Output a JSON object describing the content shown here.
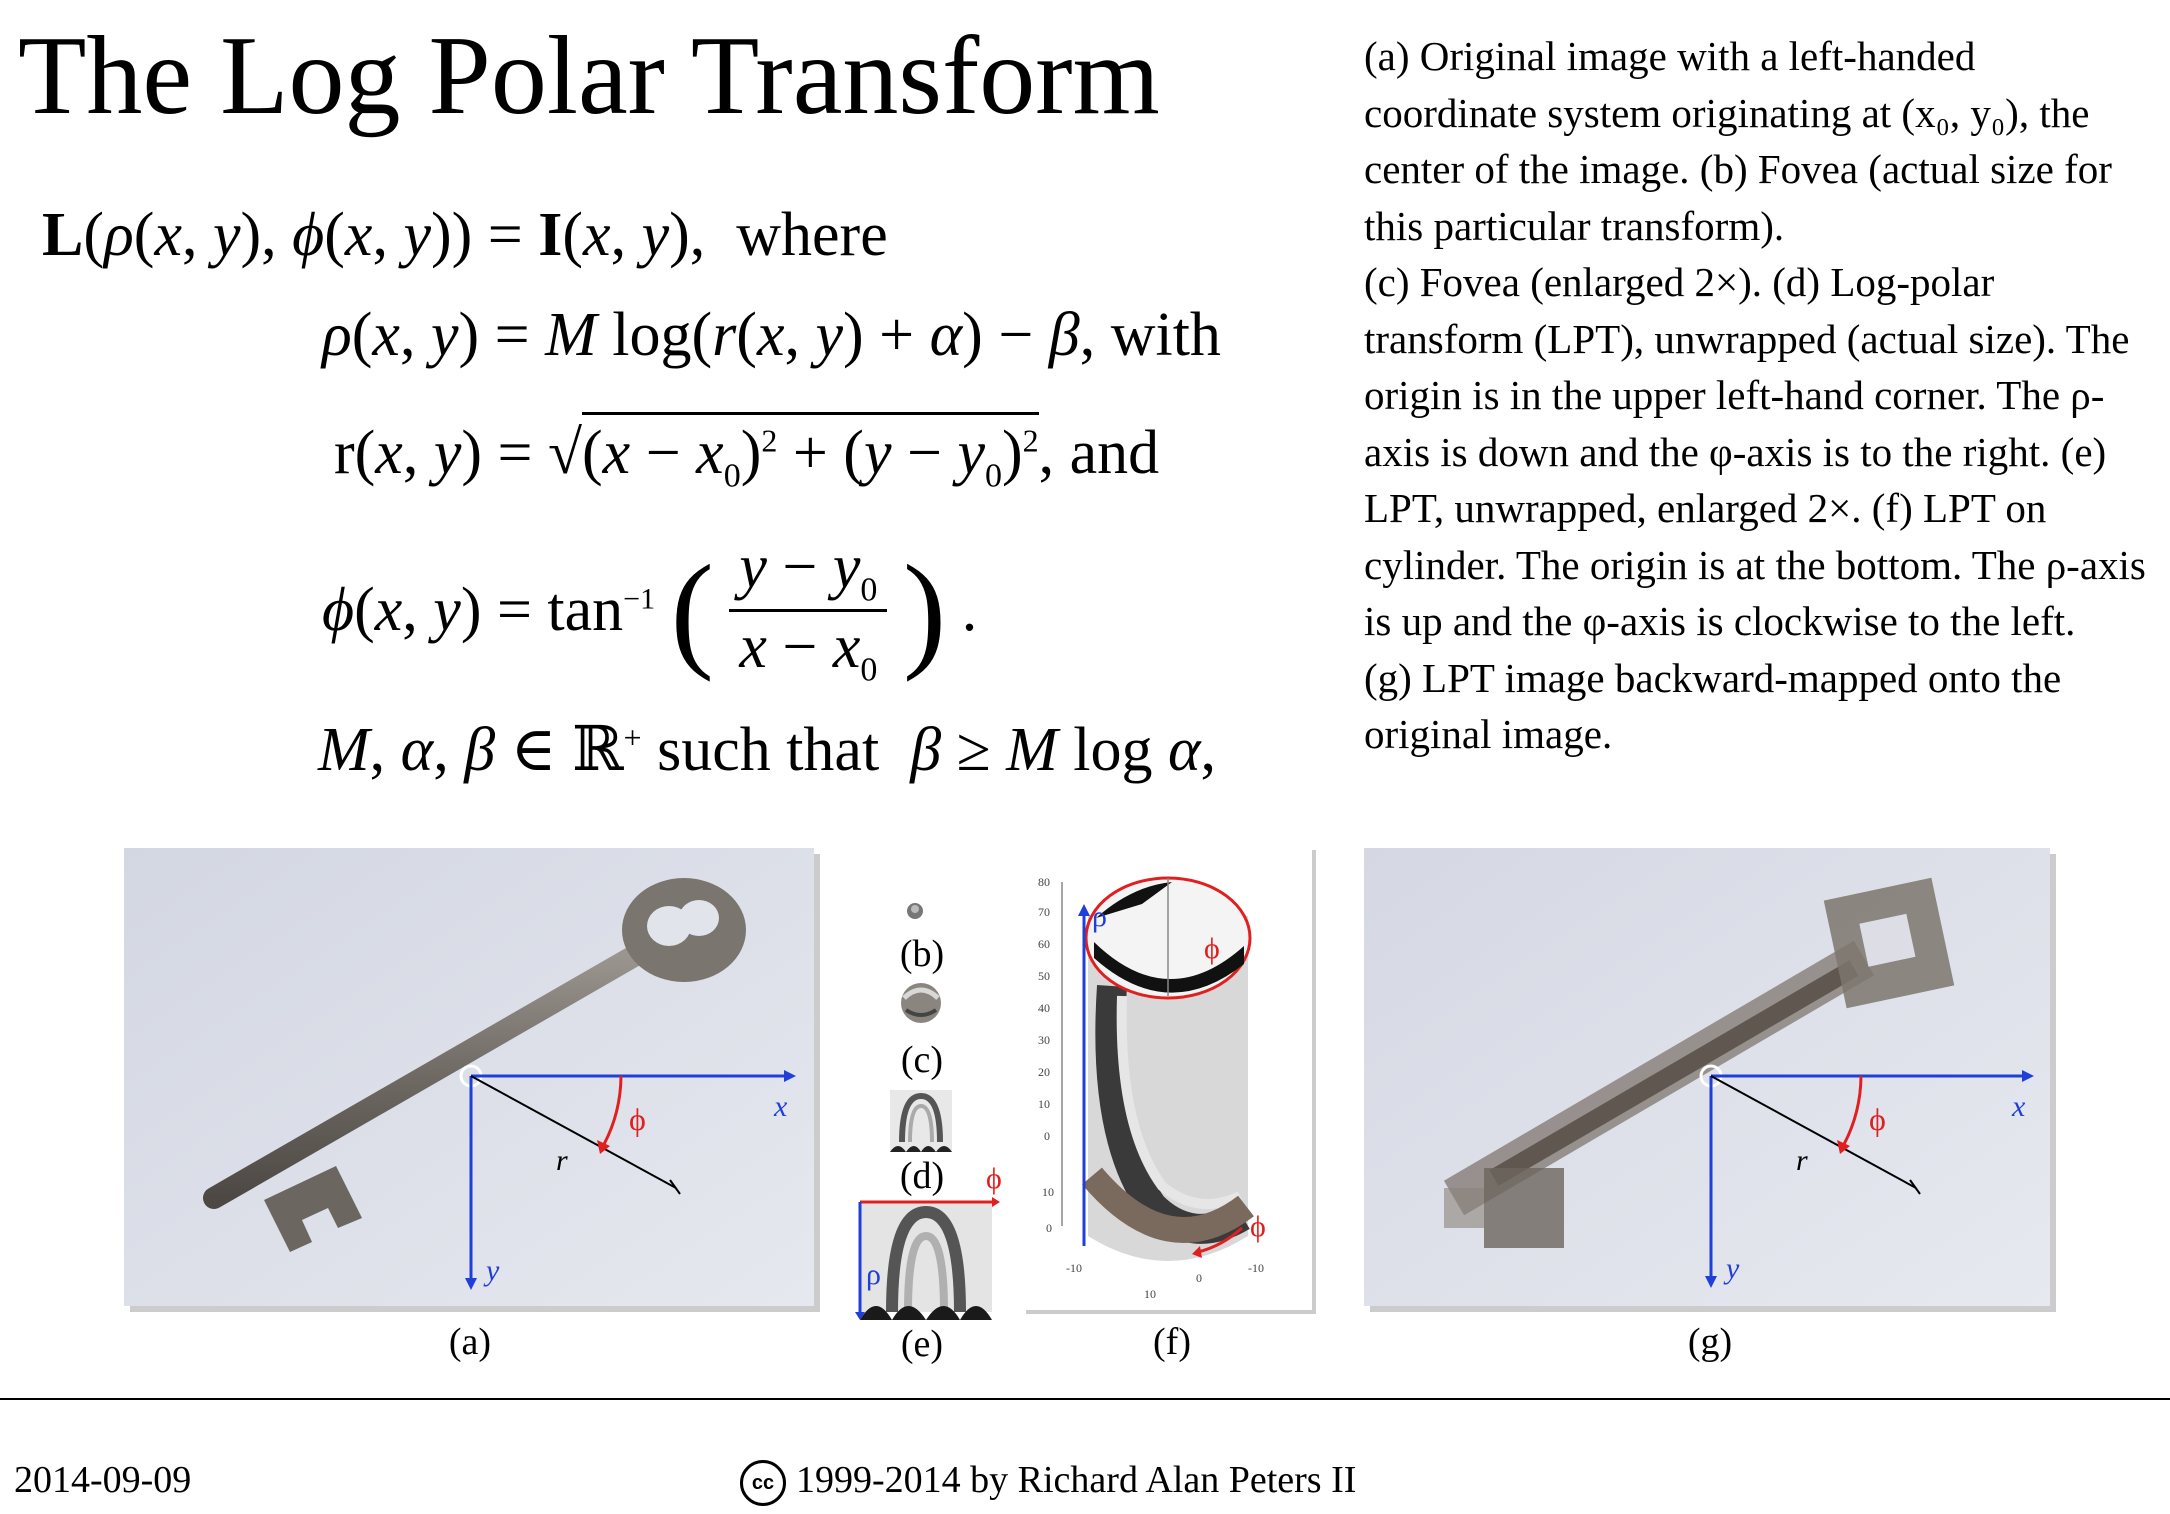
{
  "title": "The Log Polar Transform",
  "caption": [
    "(a) Original image with a left-handed coordinate system originating at (x₀, y₀), the center of the image. (b) Fovea (actual size for this particular transform).",
    "(c) Fovea (enlarged 2×). (d) Log-polar transform (LPT), unwrapped (actual size). The origin is in the upper left-hand corner. The ρ-axis is down and the φ-axis is to the right. (e) LPT, unwrapped, enlarged 2×. (f) LPT on cylinder. The origin is at the bottom. The ρ-axis is up and the φ-axis is clockwise to the left.",
    "(g) LPT image backward-mapped onto the original image."
  ],
  "equations": {
    "line1_words": "where",
    "line2_words": "with",
    "line3_words": "and",
    "line5_words": "such that"
  },
  "panels": {
    "a": "(a)",
    "b": "(b)",
    "c": "(c)",
    "d": "(d)",
    "e": "(e)",
    "f": "(f)",
    "g": "(g)"
  },
  "axis_labels": {
    "x": "x",
    "y": "y",
    "r": "r",
    "phi": "ϕ",
    "rho": "ρ"
  },
  "cylinder_ticks": [
    "80",
    "70",
    "60",
    "50",
    "40",
    "30",
    "20",
    "10",
    "0",
    "10",
    "0",
    "-10",
    "10",
    "0",
    "-10"
  ],
  "footer": {
    "date": "2014-09-09",
    "cc": "cc",
    "copyright": "1999-2014 by Richard Alan Peters II"
  },
  "colors": {
    "axis_blue": "#1f3fd8",
    "phi_red": "#e02020"
  }
}
